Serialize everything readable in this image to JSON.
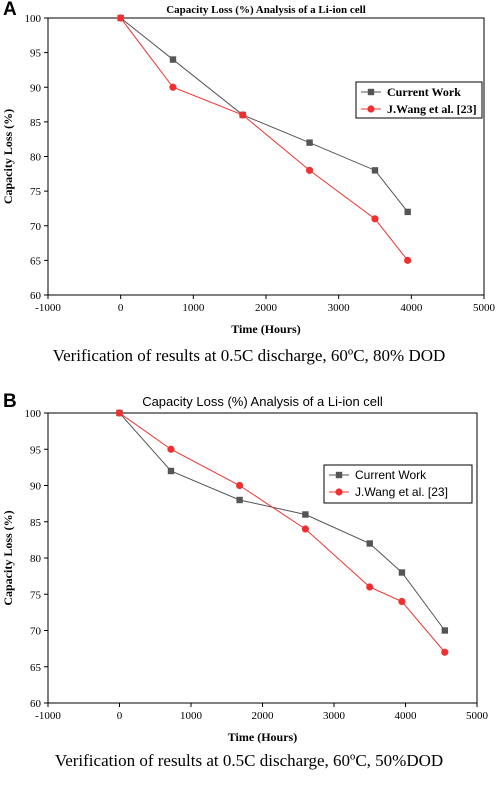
{
  "chart_data": [
    {
      "panel": "A",
      "type": "line",
      "title": "Capacity Loss (%) Analysis of a Li-ion cell",
      "xlabel": "Time (Hours)",
      "ylabel": "Capacity Loss (%)",
      "xlim": [
        -1000,
        5000
      ],
      "ylim": [
        60,
        100
      ],
      "xticks": [
        -1000,
        0,
        1000,
        2000,
        3000,
        4000,
        5000
      ],
      "yticks": [
        60,
        65,
        70,
        75,
        80,
        85,
        90,
        95,
        100
      ],
      "legend_position": "top-right",
      "series": [
        {
          "name": "Current Work",
          "marker": "square",
          "color": "#555555",
          "x": [
            0,
            720,
            1680,
            2600,
            3500,
            3950
          ],
          "y": [
            100,
            94,
            86,
            82,
            78,
            72
          ]
        },
        {
          "name": "J.Wang et al. [23]",
          "marker": "circle",
          "color": "#f03030",
          "x": [
            0,
            720,
            1680,
            2600,
            3500,
            3950
          ],
          "y": [
            100,
            90,
            86,
            78,
            71,
            65
          ]
        }
      ],
      "caption": "Verification of results at 0.5C discharge, 60ºC, 80% DOD"
    },
    {
      "panel": "B",
      "type": "line",
      "title": "Capacity Loss (%) Analysis of a Li-ion cell",
      "xlabel": "Time (Hours)",
      "ylabel": "Capacity Loss (%)",
      "xlim": [
        -1000,
        5000
      ],
      "ylim": [
        60,
        100
      ],
      "xticks": [
        -1000,
        0,
        1000,
        2000,
        3000,
        4000,
        5000
      ],
      "yticks": [
        60,
        65,
        70,
        75,
        80,
        85,
        90,
        95,
        100
      ],
      "legend_position": "top-right",
      "series": [
        {
          "name": "Current Work",
          "marker": "square",
          "color": "#555555",
          "x": [
            0,
            720,
            1680,
            2600,
            3500,
            3950,
            4550
          ],
          "y": [
            100,
            92,
            88,
            86,
            82,
            78,
            70
          ]
        },
        {
          "name": "J.Wang et al. [23]",
          "marker": "circle",
          "color": "#f03030",
          "x": [
            0,
            720,
            1680,
            2600,
            3500,
            3950,
            4550
          ],
          "y": [
            100,
            95,
            90,
            84,
            76,
            74,
            67
          ]
        }
      ],
      "caption": "Verification of results at 0.5C discharge, 60ºC, 50%DOD"
    }
  ]
}
